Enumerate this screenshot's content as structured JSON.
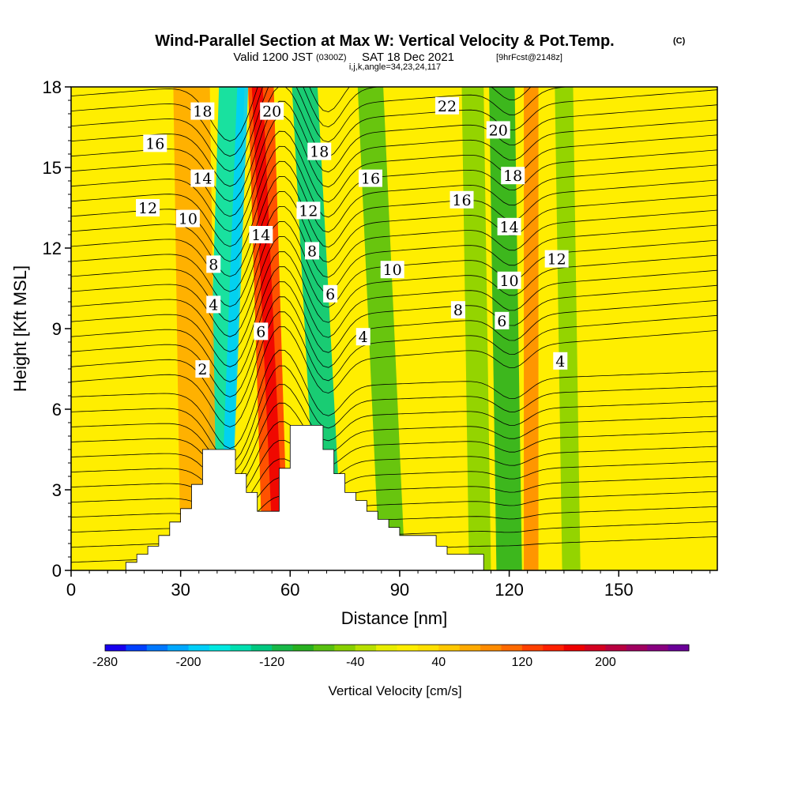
{
  "title": {
    "main": "Wind-Parallel Section at Max W: Vertical Velocity & Pot.Temp.",
    "copyright": "(C)",
    "valid_prefix": "Valid 1200 JST",
    "valid_utc": "(0300Z)",
    "valid_date": "SAT 18 Dec 2021",
    "forecast": "[9hrFcst@2148z]",
    "indices": "i,j,k,angle=34,23,24,117"
  },
  "colors": {
    "background": "#ffffff",
    "field_base": "#ffee00",
    "terrain": "#ffffff"
  },
  "chart_data": {
    "type": "heatmap",
    "xlabel": "Distance [nm]",
    "ylabel": "Height [Kft MSL]",
    "xlim": [
      0,
      177
    ],
    "ylim": [
      0,
      18
    ],
    "x_ticks": [
      "0",
      "30",
      "60",
      "90",
      "120",
      "150"
    ],
    "y_ticks": [
      "0",
      "3",
      "6",
      "9",
      "12",
      "15",
      "18"
    ],
    "field": "Vertical Velocity",
    "contour_field": "Potential Temperature",
    "colorbar": {
      "title": "Vertical Velocity [cm/s]",
      "tick_labels": [
        "-280",
        "-200",
        "-120",
        "-40",
        "40",
        "120",
        "200"
      ],
      "levels": [
        -280,
        -260,
        -240,
        -220,
        -200,
        -180,
        -160,
        -140,
        -120,
        -100,
        -80,
        -60,
        -40,
        -20,
        0,
        20,
        40,
        60,
        80,
        100,
        120,
        140,
        160,
        180,
        200,
        220,
        240,
        260,
        280
      ],
      "colors": [
        "#1800ee",
        "#0040ff",
        "#0078ff",
        "#00a8ff",
        "#00cff8",
        "#00e8e0",
        "#00dfb0",
        "#00c880",
        "#18b848",
        "#28b020",
        "#58c010",
        "#88d000",
        "#b8e000",
        "#e8ee00",
        "#ffee00",
        "#ffe000",
        "#ffc800",
        "#ffaa00",
        "#ff8c00",
        "#ff6a00",
        "#ff4000",
        "#ff2000",
        "#ee0000",
        "#d40020",
        "#b80040",
        "#a00060",
        "#880080",
        "#6a0098"
      ]
    },
    "terrain_profile": [
      [
        0,
        0
      ],
      [
        15,
        0
      ],
      [
        15,
        0.3
      ],
      [
        18,
        0.3
      ],
      [
        18,
        0.6
      ],
      [
        21,
        0.6
      ],
      [
        21,
        0.9
      ],
      [
        24,
        0.9
      ],
      [
        24,
        1.3
      ],
      [
        27,
        1.3
      ],
      [
        27,
        1.8
      ],
      [
        30,
        1.8
      ],
      [
        30,
        2.3
      ],
      [
        33,
        2.3
      ],
      [
        33,
        3.2
      ],
      [
        36,
        3.2
      ],
      [
        36,
        4.5
      ],
      [
        45,
        4.5
      ],
      [
        45,
        3.6
      ],
      [
        48,
        3.6
      ],
      [
        48,
        2.9
      ],
      [
        51,
        2.9
      ],
      [
        51,
        2.2
      ],
      [
        57,
        2.2
      ],
      [
        57,
        3.8
      ],
      [
        60,
        3.8
      ],
      [
        60,
        5.4
      ],
      [
        69,
        5.4
      ],
      [
        69,
        4.5
      ],
      [
        72,
        4.5
      ],
      [
        72,
        3.6
      ],
      [
        75,
        3.6
      ],
      [
        75,
        2.9
      ],
      [
        78,
        2.9
      ],
      [
        78,
        2.6
      ],
      [
        81,
        2.6
      ],
      [
        81,
        2.2
      ],
      [
        84,
        2.2
      ],
      [
        84,
        1.9
      ],
      [
        87,
        1.9
      ],
      [
        87,
        1.6
      ],
      [
        90,
        1.6
      ],
      [
        90,
        1.3
      ],
      [
        100,
        1.3
      ],
      [
        100,
        0.9
      ],
      [
        103,
        0.9
      ],
      [
        103,
        0.6
      ],
      [
        113,
        0.6
      ],
      [
        113,
        0
      ],
      [
        177,
        0
      ]
    ],
    "vertical_velocity_bands": [
      {
        "x_bottom": 40,
        "x_top": 44,
        "width": 7,
        "w": -150
      },
      {
        "x_bottom": 42,
        "x_top": 47,
        "width": 3,
        "w": -190
      },
      {
        "x_bottom": 56,
        "x_top": 52,
        "width": 7,
        "w": 120
      },
      {
        "x_bottom": 57,
        "x_top": 51,
        "width": 3,
        "w": 170
      },
      {
        "x_bottom": 71,
        "x_top": 64,
        "width": 7,
        "w": -130
      },
      {
        "x_bottom": 35,
        "x_top": 33,
        "width": 10,
        "w": 70
      },
      {
        "x_bottom": 88,
        "x_top": 82,
        "width": 7,
        "w": -70
      },
      {
        "x_bottom": 112,
        "x_top": 110,
        "width": 6,
        "w": -60
      },
      {
        "x_bottom": 120,
        "x_top": 118,
        "width": 7,
        "w": -100
      },
      {
        "x_bottom": 137,
        "x_top": 135,
        "width": 5,
        "w": -60
      },
      {
        "x_bottom": 126,
        "x_top": 126,
        "width": 4,
        "w": 80
      }
    ],
    "theta_contours": [
      {
        "label": "2",
        "label_x": 36,
        "label_y": 7.5
      },
      {
        "label": "4",
        "label_x": 39,
        "label_y": 9.9
      },
      {
        "label": "6",
        "label_x": 52,
        "label_y": 8.9
      },
      {
        "label": "8",
        "label_x": 39,
        "label_y": 11.4
      },
      {
        "label": "10",
        "label_x": 32,
        "label_y": 13.1
      },
      {
        "label": "12",
        "label_x": 21,
        "label_y": 13.5
      },
      {
        "label": "14",
        "label_x": 36,
        "label_y": 14.6
      },
      {
        "label": "16",
        "label_x": 23,
        "label_y": 15.9
      },
      {
        "label": "18",
        "label_x": 36,
        "label_y": 17.1
      },
      {
        "label": "20",
        "label_x": 55,
        "label_y": 17.1
      },
      {
        "label": "14",
        "label_x": 52,
        "label_y": 12.5
      },
      {
        "label": "12",
        "label_x": 65,
        "label_y": 13.4
      },
      {
        "label": "18",
        "label_x": 68,
        "label_y": 15.6
      },
      {
        "label": "8",
        "label_x": 66,
        "label_y": 11.9
      },
      {
        "label": "6",
        "label_x": 71,
        "label_y": 10.3
      },
      {
        "label": "16",
        "label_x": 82,
        "label_y": 14.6
      },
      {
        "label": "4",
        "label_x": 80,
        "label_y": 8.7
      },
      {
        "label": "10",
        "label_x": 88,
        "label_y": 11.2
      },
      {
        "label": "22",
        "label_x": 103,
        "label_y": 17.3
      },
      {
        "label": "16",
        "label_x": 107,
        "label_y": 13.8
      },
      {
        "label": "8",
        "label_x": 106,
        "label_y": 9.7
      },
      {
        "label": "20",
        "label_x": 117,
        "label_y": 16.4
      },
      {
        "label": "18",
        "label_x": 121,
        "label_y": 14.7
      },
      {
        "label": "14",
        "label_x": 120,
        "label_y": 12.8
      },
      {
        "label": "10",
        "label_x": 120,
        "label_y": 10.8
      },
      {
        "label": "6",
        "label_x": 118,
        "label_y": 9.3
      },
      {
        "label": "12",
        "label_x": 133,
        "label_y": 11.6
      },
      {
        "label": "4",
        "label_x": 134,
        "label_y": 7.8
      }
    ]
  }
}
